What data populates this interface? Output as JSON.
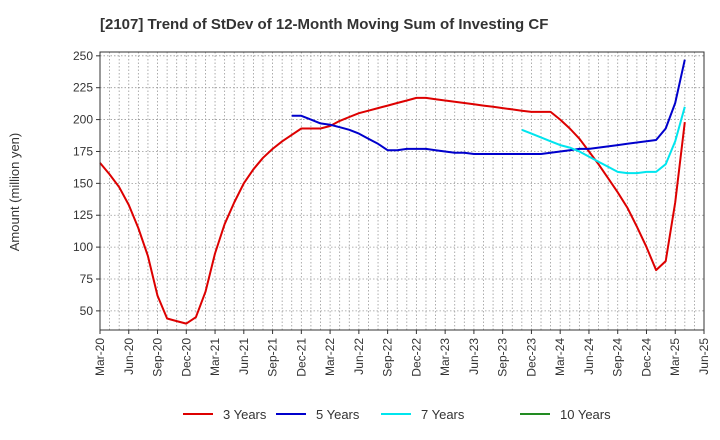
{
  "chart_data": {
    "type": "line",
    "title": "[2107]  Trend of StDev of 12-Month Moving Sum of Investing CF",
    "xlabel": "",
    "ylabel": "Amount (million yen)",
    "ylim": [
      35,
      253
    ],
    "yticks": [
      50,
      75,
      100,
      125,
      150,
      175,
      200,
      225,
      250
    ],
    "xticks": [
      "Mar-20",
      "Jun-20",
      "Sep-20",
      "Dec-20",
      "Mar-21",
      "Jun-21",
      "Sep-21",
      "Dec-21",
      "Mar-22",
      "Jun-22",
      "Sep-22",
      "Dec-22",
      "Mar-23",
      "Jun-23",
      "Sep-23",
      "Dec-23",
      "Mar-24",
      "Jun-24",
      "Sep-24",
      "Dec-24",
      "Mar-25",
      "Jun-25"
    ],
    "grid": true,
    "legend_position": "bottom",
    "series": [
      {
        "name": "3 Years",
        "color": "#dd0000",
        "points": [
          [
            "Mar-20",
            166
          ],
          [
            "Apr-20",
            157
          ],
          [
            "May-20",
            147
          ],
          [
            "Jun-20",
            133
          ],
          [
            "Jul-20",
            115
          ],
          [
            "Aug-20",
            93
          ],
          [
            "Sep-20",
            62
          ],
          [
            "Oct-20",
            44
          ],
          [
            "Nov-20",
            42
          ],
          [
            "Dec-20",
            40
          ],
          [
            "Jan-21",
            45
          ],
          [
            "Feb-21",
            65
          ],
          [
            "Mar-21",
            95
          ],
          [
            "Apr-21",
            118
          ],
          [
            "May-21",
            135
          ],
          [
            "Jun-21",
            150
          ],
          [
            "Jul-21",
            161
          ],
          [
            "Aug-21",
            170
          ],
          [
            "Sep-21",
            177
          ],
          [
            "Oct-21",
            183
          ],
          [
            "Nov-21",
            188
          ],
          [
            "Dec-21",
            193
          ],
          [
            "Jan-22",
            193
          ],
          [
            "Feb-22",
            193
          ],
          [
            "Mar-22",
            195
          ],
          [
            "Apr-22",
            199
          ],
          [
            "May-22",
            202
          ],
          [
            "Jun-22",
            205
          ],
          [
            "Jul-22",
            207
          ],
          [
            "Aug-22",
            209
          ],
          [
            "Sep-22",
            211
          ],
          [
            "Oct-22",
            213
          ],
          [
            "Nov-22",
            215
          ],
          [
            "Dec-22",
            217
          ],
          [
            "Jan-23",
            217
          ],
          [
            "Feb-23",
            216
          ],
          [
            "Mar-23",
            215
          ],
          [
            "Apr-23",
            214
          ],
          [
            "May-23",
            213
          ],
          [
            "Jun-23",
            212
          ],
          [
            "Jul-23",
            211
          ],
          [
            "Aug-23",
            210
          ],
          [
            "Sep-23",
            209
          ],
          [
            "Oct-23",
            208
          ],
          [
            "Nov-23",
            207
          ],
          [
            "Dec-23",
            206
          ],
          [
            "Jan-24",
            206
          ],
          [
            "Feb-24",
            206
          ],
          [
            "Mar-24",
            200
          ],
          [
            "Apr-24",
            193
          ],
          [
            "May-24",
            185
          ],
          [
            "Jun-24",
            175
          ],
          [
            "Jul-24",
            165
          ],
          [
            "Aug-24",
            154
          ],
          [
            "Sep-24",
            143
          ],
          [
            "Oct-24",
            131
          ],
          [
            "Nov-24",
            116
          ],
          [
            "Dec-24",
            100
          ],
          [
            "Jan-25",
            82
          ],
          [
            "Feb-25",
            89
          ],
          [
            "Mar-25",
            135
          ],
          [
            "Apr-25",
            198
          ]
        ]
      },
      {
        "name": "5 Years",
        "color": "#0000cc",
        "points": [
          [
            "Nov-21",
            203
          ],
          [
            "Dec-21",
            203
          ],
          [
            "Jan-22",
            200
          ],
          [
            "Feb-22",
            197
          ],
          [
            "Mar-22",
            196
          ],
          [
            "Apr-22",
            194
          ],
          [
            "May-22",
            192
          ],
          [
            "Jun-22",
            189
          ],
          [
            "Jul-22",
            185
          ],
          [
            "Aug-22",
            181
          ],
          [
            "Sep-22",
            176
          ],
          [
            "Oct-22",
            176
          ],
          [
            "Nov-22",
            177
          ],
          [
            "Dec-22",
            177
          ],
          [
            "Jan-23",
            177
          ],
          [
            "Feb-23",
            176
          ],
          [
            "Mar-23",
            175
          ],
          [
            "Apr-23",
            174
          ],
          [
            "May-23",
            174
          ],
          [
            "Jun-23",
            173
          ],
          [
            "Jul-23",
            173
          ],
          [
            "Aug-23",
            173
          ],
          [
            "Sep-23",
            173
          ],
          [
            "Oct-23",
            173
          ],
          [
            "Nov-23",
            173
          ],
          [
            "Dec-23",
            173
          ],
          [
            "Jan-24",
            173
          ],
          [
            "Feb-24",
            174
          ],
          [
            "Mar-24",
            175
          ],
          [
            "Apr-24",
            176
          ],
          [
            "May-24",
            177
          ],
          [
            "Jun-24",
            177
          ],
          [
            "Jul-24",
            178
          ],
          [
            "Aug-24",
            179
          ],
          [
            "Sep-24",
            180
          ],
          [
            "Oct-24",
            181
          ],
          [
            "Nov-24",
            182
          ],
          [
            "Dec-24",
            183
          ],
          [
            "Jan-25",
            184
          ],
          [
            "Feb-25",
            193
          ],
          [
            "Mar-25",
            213
          ],
          [
            "Apr-25",
            247
          ]
        ]
      },
      {
        "name": "7 Years",
        "color": "#00e5ee",
        "points": [
          [
            "Nov-23",
            192
          ],
          [
            "Dec-23",
            189
          ],
          [
            "Jan-24",
            186
          ],
          [
            "Feb-24",
            183
          ],
          [
            "Mar-24",
            180
          ],
          [
            "Apr-24",
            178
          ],
          [
            "May-24",
            175
          ],
          [
            "Jun-24",
            171
          ],
          [
            "Jul-24",
            167
          ],
          [
            "Aug-24",
            163
          ],
          [
            "Sep-24",
            159
          ],
          [
            "Oct-24",
            158
          ],
          [
            "Nov-24",
            158
          ],
          [
            "Dec-24",
            159
          ],
          [
            "Jan-25",
            159
          ],
          [
            "Feb-25",
            165
          ],
          [
            "Mar-25",
            183
          ],
          [
            "Apr-25",
            210
          ]
        ]
      },
      {
        "name": "10 Years",
        "color": "#228b22",
        "points": []
      }
    ]
  }
}
